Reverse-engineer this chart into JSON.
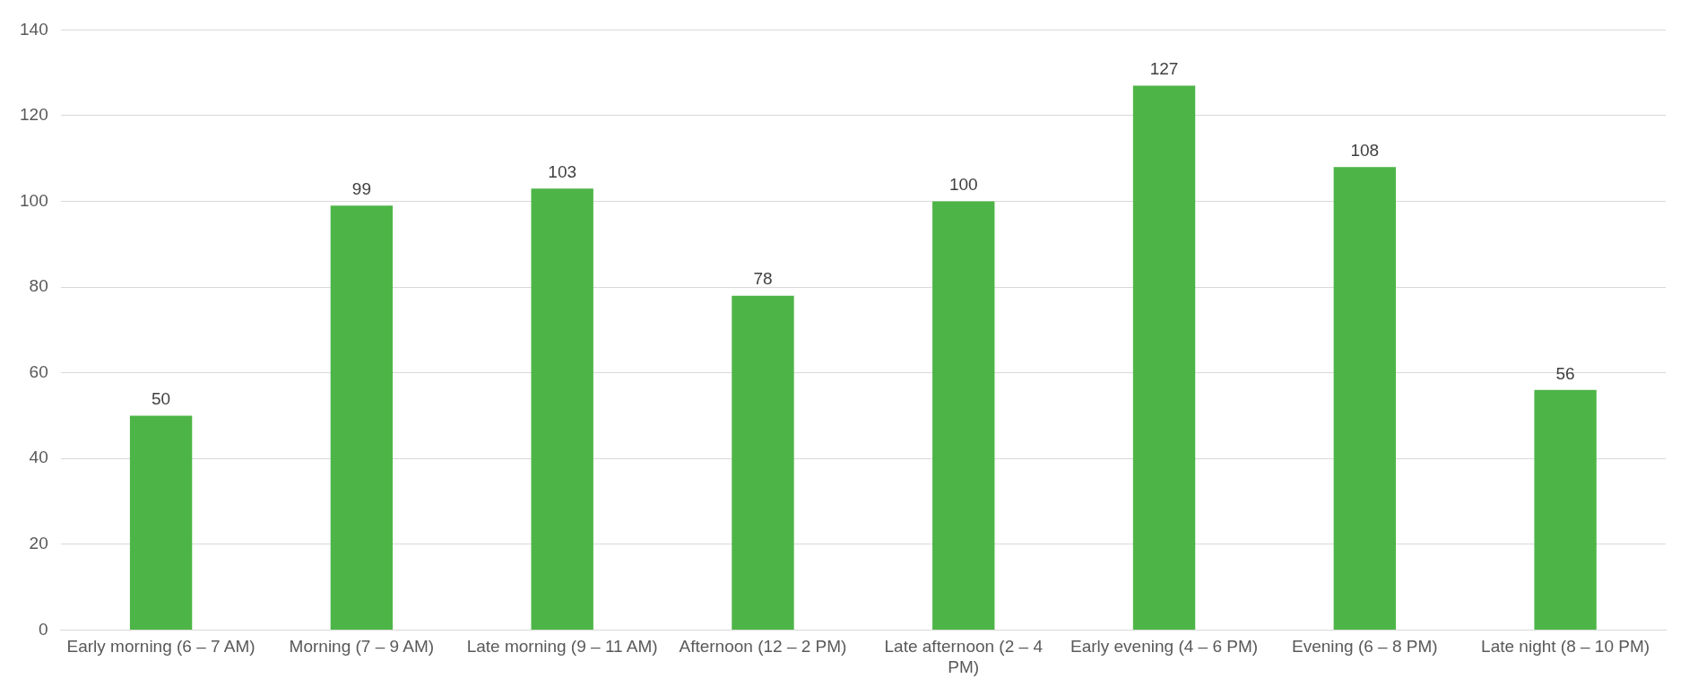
{
  "chart_data": {
    "type": "bar",
    "categories": [
      "Early morning (6 – 7 AM)",
      "Morning (7 – 9 AM)",
      "Late morning (9 – 11 AM)",
      "Afternoon (12 – 2 PM)",
      "Late afternoon (2 – 4 PM)",
      "Early evening (4 – 6 PM)",
      "Evening (6 – 8 PM)",
      "Late night (8 – 10 PM)"
    ],
    "values": [
      50,
      99,
      103,
      78,
      100,
      127,
      108,
      56
    ],
    "color": "#4db547",
    "ylim": [
      0,
      140
    ],
    "yticks": [
      0,
      20,
      40,
      60,
      80,
      100,
      120,
      140
    ],
    "grid": "y",
    "data_labels": true,
    "legend": false
  }
}
